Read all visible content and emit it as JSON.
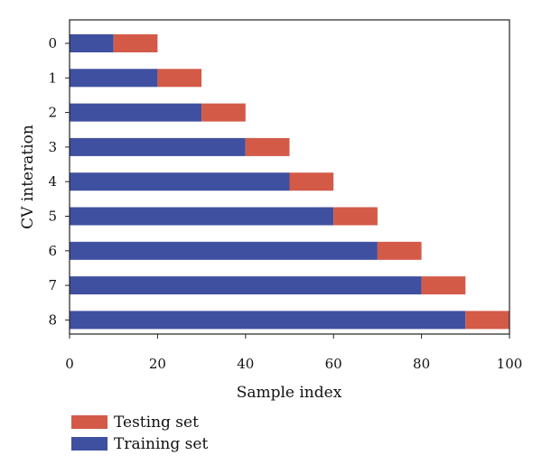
{
  "chart_data": {
    "type": "bar",
    "orientation": "horizontal",
    "stacked": true,
    "title": "",
    "xlabel": "Sample index",
    "ylabel": "CV interation",
    "xlim": [
      0,
      100
    ],
    "xticks": [
      0,
      20,
      40,
      60,
      80,
      100
    ],
    "categories": [
      "0",
      "1",
      "2",
      "3",
      "4",
      "5",
      "6",
      "7",
      "8"
    ],
    "series": [
      {
        "name": "Training set",
        "color": "#4050a0",
        "values": [
          10,
          20,
          30,
          40,
          50,
          60,
          70,
          80,
          90
        ]
      },
      {
        "name": "Testing set",
        "color": "#d45a48",
        "values": [
          10,
          10,
          10,
          10,
          10,
          10,
          10,
          10,
          10
        ]
      }
    ],
    "grid": false,
    "legend": {
      "position": "bottom-left",
      "order": [
        "Testing set",
        "Training set"
      ]
    }
  }
}
